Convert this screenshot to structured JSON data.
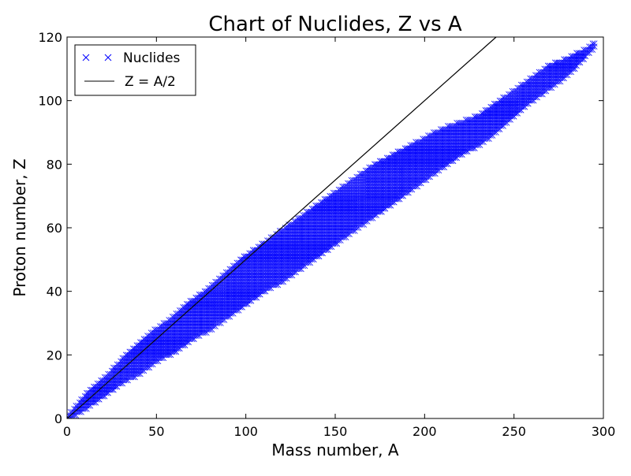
{
  "chart_data": {
    "type": "scatter",
    "title": "Chart of Nuclides, Z vs A",
    "xlabel": "Mass number, A",
    "ylabel": "Proton number, Z",
    "xlim": [
      0,
      300
    ],
    "ylim": [
      0,
      120
    ],
    "x_ticks": [
      0,
      50,
      100,
      150,
      200,
      250,
      300
    ],
    "x_tick_labels": [
      "0",
      "50",
      "100",
      "150",
      "200",
      "250",
      "300"
    ],
    "y_ticks": [
      0,
      20,
      40,
      60,
      80,
      100,
      120
    ],
    "y_tick_labels": [
      "0",
      "20",
      "40",
      "60",
      "80",
      "100",
      "120"
    ],
    "grid": false,
    "legend_position": "top-left",
    "series": [
      {
        "name": "Nuclides",
        "kind": "scatter",
        "marker": "x",
        "color": "#0000ff",
        "envelope": [
          {
            "A": 1,
            "Zmin": 0,
            "Zmax": 1
          },
          {
            "A": 10,
            "Zmin": 3,
            "Zmax": 7
          },
          {
            "A": 20,
            "Zmin": 7,
            "Zmax": 12
          },
          {
            "A": 30,
            "Zmin": 11,
            "Zmax": 18
          },
          {
            "A": 40,
            "Zmin": 14,
            "Zmax": 23
          },
          {
            "A": 50,
            "Zmin": 18,
            "Zmax": 28
          },
          {
            "A": 60,
            "Zmin": 21,
            "Zmax": 32
          },
          {
            "A": 70,
            "Zmin": 25,
            "Zmax": 37
          },
          {
            "A": 80,
            "Zmin": 28,
            "Zmax": 41
          },
          {
            "A": 90,
            "Zmin": 32,
            "Zmax": 46
          },
          {
            "A": 100,
            "Zmin": 36,
            "Zmax": 51
          },
          {
            "A": 110,
            "Zmin": 40,
            "Zmax": 55
          },
          {
            "A": 120,
            "Zmin": 43,
            "Zmax": 59
          },
          {
            "A": 130,
            "Zmin": 47,
            "Zmax": 63
          },
          {
            "A": 140,
            "Zmin": 51,
            "Zmax": 67
          },
          {
            "A": 150,
            "Zmin": 55,
            "Zmax": 71
          },
          {
            "A": 160,
            "Zmin": 59,
            "Zmax": 75
          },
          {
            "A": 170,
            "Zmin": 63,
            "Zmax": 79
          },
          {
            "A": 180,
            "Zmin": 67,
            "Zmax": 82
          },
          {
            "A": 190,
            "Zmin": 71,
            "Zmax": 85
          },
          {
            "A": 200,
            "Zmin": 75,
            "Zmax": 88
          },
          {
            "A": 210,
            "Zmin": 79,
            "Zmax": 91
          },
          {
            "A": 220,
            "Zmin": 83,
            "Zmax": 93
          },
          {
            "A": 230,
            "Zmin": 86,
            "Zmax": 95
          },
          {
            "A": 240,
            "Zmin": 90,
            "Zmax": 99
          },
          {
            "A": 250,
            "Zmin": 95,
            "Zmax": 103
          },
          {
            "A": 260,
            "Zmin": 100,
            "Zmax": 107
          },
          {
            "A": 270,
            "Zmin": 104,
            "Zmax": 111
          },
          {
            "A": 280,
            "Zmin": 108,
            "Zmax": 113
          },
          {
            "A": 290,
            "Zmin": 114,
            "Zmax": 116
          },
          {
            "A": 295,
            "Zmin": 117,
            "Zmax": 118
          }
        ]
      },
      {
        "name": "Z = A/2",
        "kind": "line",
        "color": "#000000",
        "x": [
          0,
          240
        ],
        "y": [
          0,
          120
        ]
      }
    ]
  }
}
